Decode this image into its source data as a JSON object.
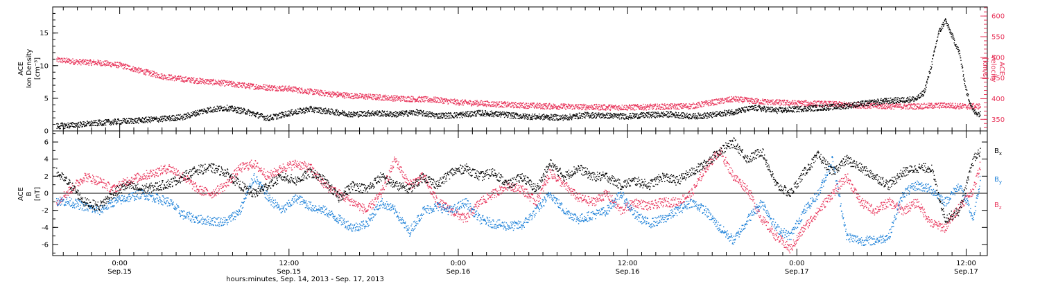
{
  "colors": {
    "black": "#000000",
    "red": "#e8345a",
    "blue": "#1a7fd8"
  },
  "chart_data": [
    {
      "type": "scatter",
      "panel": "top",
      "ylabel_left": [
        "ACE",
        "Ion Density",
        "[cm⁻³]"
      ],
      "ylabel_right": [
        "ACE",
        "Velocity",
        "[km/s]"
      ],
      "yticks_left": [
        "0",
        "5",
        "10",
        "15"
      ],
      "ylim_left": [
        0,
        19
      ],
      "yticks_right": [
        "350",
        "400",
        "450",
        "500",
        "550",
        "600"
      ],
      "ylim_right": [
        322,
        622
      ],
      "x_unit": "hours since 2013-09-14 00:00",
      "xlim": [
        19.25,
        85.5
      ],
      "series": [
        {
          "quantity": "density",
          "axis": "left",
          "color": "#000000",
          "x": [
            19.5,
            21,
            22.5,
            24,
            25.5,
            27,
            28.5,
            30,
            31.5,
            33,
            34.5,
            36,
            37.5,
            39,
            40.5,
            42,
            43.5,
            45,
            46.5,
            48,
            49.5,
            51,
            52.5,
            54,
            55.5,
            57,
            58.5,
            60,
            61.5,
            63,
            64.5,
            66,
            67.5,
            69,
            70.5,
            72,
            73.5,
            75,
            76.5,
            78,
            79.5,
            80.5,
            81,
            81.5,
            82,
            82.5,
            83,
            83.5,
            84,
            84.5,
            85
          ],
          "y": [
            0.8,
            1.0,
            1.3,
            1.5,
            1.7,
            1.9,
            2.2,
            3.2,
            3.6,
            3.0,
            2.0,
            2.8,
            3.4,
            3.0,
            2.6,
            2.8,
            2.6,
            2.9,
            2.4,
            2.5,
            2.8,
            2.6,
            2.3,
            2.2,
            2.1,
            2.5,
            2.4,
            2.3,
            2.5,
            2.6,
            2.3,
            2.5,
            3.0,
            3.6,
            3.2,
            3.4,
            3.6,
            3.8,
            4.2,
            4.6,
            4.8,
            5.0,
            6.0,
            10.0,
            15.0,
            17.0,
            14.5,
            12.0,
            6.0,
            3.0,
            2.6
          ]
        },
        {
          "quantity": "velocity",
          "axis": "right",
          "color": "#e8345a",
          "x": [
            19.5,
            21,
            22.5,
            24,
            25.5,
            27,
            28.5,
            30,
            31.5,
            33,
            34.5,
            36,
            37.5,
            39,
            40.5,
            42,
            43.5,
            45,
            46.5,
            48,
            49.5,
            51,
            52.5,
            54,
            55.5,
            57,
            58.5,
            60,
            61.5,
            63,
            64.5,
            66,
            67.5,
            69,
            70.5,
            72,
            73.5,
            75,
            76.5,
            78,
            79.5,
            81,
            82.5,
            84,
            85
          ],
          "y": [
            495,
            490,
            488,
            482,
            468,
            455,
            448,
            443,
            438,
            432,
            428,
            425,
            418,
            412,
            408,
            405,
            402,
            400,
            398,
            392,
            390,
            387,
            385,
            383,
            382,
            381,
            380,
            380,
            381,
            382,
            383,
            392,
            400,
            395,
            392,
            390,
            389,
            387,
            385,
            383,
            382,
            383,
            385,
            382,
            383
          ]
        }
      ]
    },
    {
      "type": "scatter",
      "panel": "bottom",
      "ylabel": [
        "ACE",
        "B",
        "[nT]"
      ],
      "yticks": [
        "-6",
        "-4",
        "-2",
        "0",
        "2",
        "4",
        "6"
      ],
      "ylim": [
        -7.3,
        7.3
      ],
      "zero_line": true,
      "x_unit": "hours since 2013-09-14 00:00",
      "xlim": [
        19.25,
        85.5
      ],
      "series": [
        {
          "name": "Bx",
          "label_main": "B",
          "label_sub": "x",
          "color": "#000000",
          "x": [
            19.5,
            20.5,
            21.5,
            22.5,
            23.5,
            24.5,
            25.5,
            26.5,
            27.5,
            28.5,
            29.5,
            30.5,
            31.5,
            32.5,
            33.5,
            34.5,
            35.5,
            36.5,
            37.5,
            38.5,
            39.5,
            40.5,
            41.5,
            42.5,
            43.5,
            44.5,
            45.5,
            46.5,
            47.5,
            48.5,
            49.5,
            50.5,
            51.5,
            52.5,
            53.5,
            54.5,
            55.5,
            56.5,
            57.5,
            58.5,
            59.5,
            60.5,
            61.5,
            62.5,
            63.5,
            64.5,
            65.5,
            66.5,
            67.5,
            68.5,
            69.5,
            70.5,
            71.5,
            72.5,
            73.5,
            74.5,
            75.5,
            76.5,
            77.5,
            78.5,
            79.5,
            80.5,
            81.5,
            82.5,
            83.5,
            84.5,
            85
          ],
          "y": [
            2.5,
            1.0,
            -1.0,
            -1.5,
            0.0,
            1.0,
            0.5,
            0.8,
            1.2,
            2.0,
            2.8,
            3.0,
            2.5,
            1.0,
            0.0,
            1.0,
            2.0,
            1.5,
            2.5,
            1.5,
            -0.5,
            1.0,
            0.5,
            2.0,
            1.0,
            0.5,
            2.0,
            1.0,
            2.5,
            3.0,
            2.0,
            2.5,
            1.0,
            2.0,
            0.5,
            3.5,
            2.0,
            3.0,
            2.0,
            2.0,
            1.0,
            1.5,
            1.0,
            2.0,
            1.5,
            2.5,
            3.5,
            5.0,
            6.0,
            4.0,
            5.0,
            1.0,
            0.0,
            2.5,
            4.5,
            2.5,
            4.0,
            3.0,
            2.0,
            1.0,
            2.5,
            3.0,
            3.0,
            -3.0,
            -2.0,
            4.0,
            5.0
          ]
        },
        {
          "name": "By",
          "label_main": "B",
          "label_sub": "y",
          "color": "#1a7fd8",
          "x": [
            19.5,
            20.5,
            21.5,
            22.5,
            23.5,
            24.5,
            25.5,
            26.5,
            27.5,
            28.5,
            29.5,
            30.5,
            31.5,
            32.5,
            33.5,
            34.5,
            35.5,
            36.5,
            37.5,
            38.5,
            39.5,
            40.5,
            41.5,
            42.5,
            43.5,
            44.5,
            45.5,
            46.5,
            47.5,
            48.5,
            49.5,
            50.5,
            51.5,
            52.5,
            53.5,
            54.5,
            55.5,
            56.5,
            57.5,
            58.5,
            59.5,
            60.5,
            61.5,
            62.5,
            63.5,
            64.5,
            65.5,
            66.5,
            67.5,
            68.5,
            69.5,
            70.5,
            71.5,
            72.5,
            73.5,
            74.5,
            75.5,
            76.5,
            77.5,
            78.5,
            79.5,
            80.5,
            81.5,
            82.5,
            83.5,
            84.5,
            85
          ],
          "y": [
            -0.8,
            -1.0,
            -1.5,
            -2.0,
            -1.0,
            -0.5,
            0.0,
            -0.5,
            -1.0,
            -2.5,
            -3.0,
            -3.2,
            -3.3,
            -2.0,
            2.0,
            -0.5,
            -2.0,
            -0.5,
            -1.5,
            -2.0,
            -3.0,
            -4.0,
            -3.5,
            -1.0,
            -2.0,
            -4.5,
            -2.0,
            -1.5,
            -2.0,
            -1.0,
            -3.0,
            -3.5,
            -3.8,
            -3.7,
            -2.0,
            0.0,
            -2.0,
            -3.0,
            -2.5,
            -2.0,
            0.0,
            -2.5,
            -3.5,
            -3.0,
            -2.0,
            -1.0,
            -2.0,
            -4.0,
            -5.5,
            -3.0,
            -1.0,
            -4.0,
            -5.0,
            -2.0,
            0.0,
            4.0,
            -5.0,
            -5.5,
            -5.5,
            -5.0,
            0.0,
            1.0,
            0.5,
            -1.0,
            1.0,
            -3.0,
            2.0
          ]
        },
        {
          "name": "Bz",
          "label_main": "B",
          "label_sub": "z",
          "color": "#e8345a",
          "x": [
            19.5,
            20.5,
            21.5,
            22.5,
            23.5,
            24.5,
            25.5,
            26.5,
            27.5,
            28.5,
            29.5,
            30.5,
            31.5,
            32.5,
            33.5,
            34.5,
            35.5,
            36.5,
            37.5,
            38.5,
            39.5,
            40.5,
            41.5,
            42.5,
            43.5,
            44.5,
            45.5,
            46.5,
            47.5,
            48.5,
            49.5,
            50.5,
            51.5,
            52.5,
            53.5,
            54.5,
            55.5,
            56.5,
            57.5,
            58.5,
            59.5,
            60.5,
            61.5,
            62.5,
            63.5,
            64.5,
            65.5,
            66.5,
            67.5,
            68.5,
            69.5,
            70.5,
            71.5,
            72.5,
            73.5,
            74.5,
            75.5,
            76.5,
            77.5,
            78.5,
            79.5,
            80.5,
            81.5,
            82.5,
            83.5,
            84.5,
            85
          ],
          "y": [
            -1.0,
            0.5,
            2.0,
            1.5,
            0.5,
            1.5,
            2.0,
            2.5,
            3.0,
            2.0,
            0.5,
            0.0,
            1.0,
            3.0,
            3.5,
            2.0,
            3.0,
            3.5,
            3.0,
            1.0,
            0.0,
            -1.0,
            -2.0,
            0.0,
            4.0,
            1.0,
            2.0,
            -1.0,
            -2.0,
            -3.0,
            -1.0,
            0.0,
            1.0,
            0.5,
            -1.0,
            2.5,
            1.0,
            -0.5,
            -1.0,
            0.0,
            -2.0,
            -1.0,
            -1.5,
            -1.0,
            -1.0,
            0.0,
            3.0,
            5.0,
            2.0,
            0.5,
            -3.0,
            -5.0,
            -6.5,
            -4.0,
            -2.0,
            0.0,
            2.0,
            -1.0,
            -2.0,
            -1.0,
            -2.0,
            -1.0,
            -3.5,
            -4.0,
            -1.5,
            0.5,
            3.5
          ]
        }
      ]
    }
  ],
  "x_axis": {
    "ticks": [
      {
        "hour": 24,
        "time": "0:00",
        "date": "Sep.15"
      },
      {
        "hour": 36,
        "time": "12:00",
        "date": "Sep.15"
      },
      {
        "hour": 48,
        "time": "0:00",
        "date": "Sep.16"
      },
      {
        "hour": 60,
        "time": "12:00",
        "date": "Sep.16"
      },
      {
        "hour": 72,
        "time": "0:00",
        "date": "Sep.17"
      },
      {
        "hour": 84,
        "time": "12:00",
        "date": "Sep.17"
      }
    ],
    "title": "hours:minutes, Sep. 14, 2013 - Sep. 17, 2013"
  }
}
